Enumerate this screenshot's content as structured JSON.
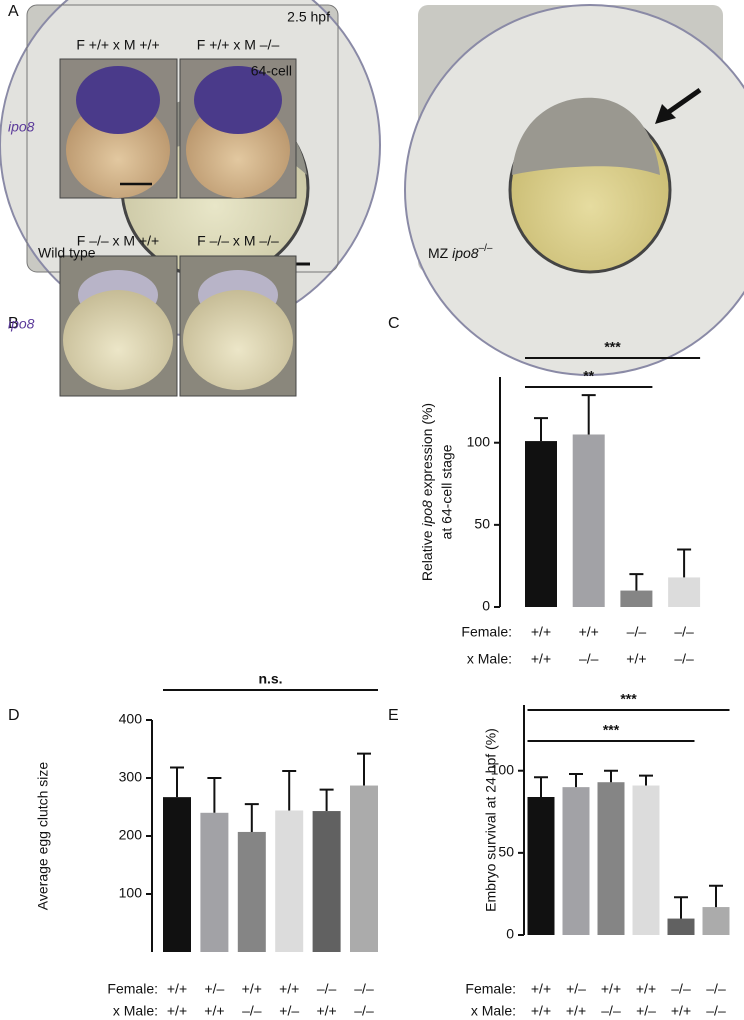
{
  "panels": {
    "letters": [
      "A",
      "B",
      "C",
      "D",
      "E"
    ],
    "a": {
      "stage": "2.5 hpf",
      "left_label": "Wild type",
      "right_label_prefix": "MZ ",
      "right_label_gene": "ipo8",
      "right_label_genotype": "–/–"
    },
    "b": {
      "headers": [
        "F +/+ x M +/+",
        "F +/+ x M –/–",
        "F –/– x M +/+",
        "F –/– x M –/–"
      ],
      "stage": "64-cell",
      "gene_labels": [
        "ipo8",
        "ipo8"
      ]
    }
  },
  "chart_data": [
    {
      "type": "bar",
      "ylabel_parts": [
        "Relative ",
        "ipo8",
        " expression (%)"
      ],
      "ylabel_line2": "at 64-cell stage",
      "row_labels": [
        "Female:",
        "x Male:"
      ],
      "categories": [
        "+/+",
        "+/+",
        "–/–",
        "–/–"
      ],
      "categories_male": [
        "+/+",
        "–/–",
        "+/+",
        "–/–"
      ],
      "values": [
        101,
        105,
        10,
        18
      ],
      "errors": [
        14,
        24,
        10,
        17
      ],
      "colors": [
        "#111111",
        "#a2a2a6",
        "#858585",
        "#dcdcdc"
      ],
      "ylim": [
        0,
        140
      ],
      "yticks": [
        0,
        50,
        100
      ],
      "annotations": [
        {
          "from": 0,
          "to": 2,
          "label": "**"
        },
        {
          "from": 0,
          "to": 3,
          "label": "***"
        }
      ]
    },
    {
      "type": "bar",
      "ylabel": "Average egg clutch size",
      "row_labels": [
        "Female:",
        "x Male:"
      ],
      "categories": [
        "+/+",
        "+/–",
        "+/+",
        "+/+",
        "–/–",
        "–/–"
      ],
      "categories_male": [
        "+/+",
        "+/+",
        "–/–",
        "+/–",
        "+/+",
        "–/–"
      ],
      "values": [
        267,
        240,
        207,
        244,
        243,
        287
      ],
      "errors": [
        51,
        60,
        48,
        68,
        37,
        55
      ],
      "colors": [
        "#111111",
        "#a2a2a6",
        "#858585",
        "#dcdcdc",
        "#616161",
        "#ababab"
      ],
      "ylim": [
        0,
        400
      ],
      "yticks": [
        100,
        200,
        300,
        400
      ],
      "annotations": [
        {
          "from": 0,
          "to": 5,
          "label": "n.s."
        }
      ]
    },
    {
      "type": "bar",
      "ylabel": "Embryo survival at 24 hpf (%)",
      "row_labels": [
        "Female:",
        "x Male:"
      ],
      "categories": [
        "+/+",
        "+/–",
        "+/+",
        "+/+",
        "–/–",
        "–/–"
      ],
      "categories_male": [
        "+/+",
        "+/+",
        "–/–",
        "+/–",
        "+/+",
        "–/–"
      ],
      "values": [
        84,
        90,
        93,
        91,
        10,
        17
      ],
      "errors": [
        12,
        8,
        7,
        6,
        13,
        13
      ],
      "colors": [
        "#111111",
        "#a2a2a6",
        "#858585",
        "#dcdcdc",
        "#616161",
        "#ababab"
      ],
      "ylim": [
        0,
        140
      ],
      "yticks": [
        0,
        50,
        100
      ],
      "annotations": [
        {
          "from": 0,
          "to": 4,
          "label": "***"
        },
        {
          "from": 0,
          "to": 5,
          "label": "***"
        }
      ]
    }
  ]
}
